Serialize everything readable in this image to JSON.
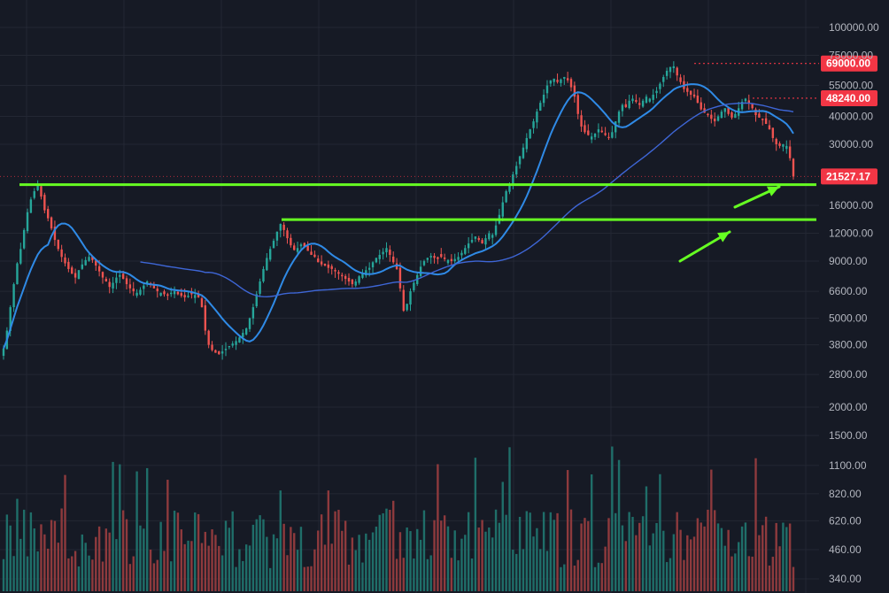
{
  "chart_data": {
    "type": "candlestick",
    "y_scale": "log",
    "grid": true,
    "price_axis": {
      "ticks": [
        "2000.00",
        "2800.00",
        "3800.00",
        "5000.00",
        "6600.00",
        "9000.00",
        "12000.00",
        "16000.00",
        "30000.00",
        "40000.00",
        "55000.00",
        "75000.00",
        "100000.00"
      ],
      "range": [
        1600,
        125000
      ]
    },
    "volume_axis": {
      "ticks": [
        "340.00",
        "460.00",
        "620.00",
        "820.00",
        "1100.00",
        "1500.00"
      ]
    },
    "price_badges": [
      {
        "label": "69000.00",
        "value": 69000,
        "color": "#f23645",
        "style": "dotted"
      },
      {
        "label": "48240.00",
        "value": 48240,
        "color": "#f23645",
        "style": "dotted"
      },
      {
        "label": "21527.17",
        "value": 21527.17,
        "color": "#f23645",
        "style": "current"
      }
    ],
    "support_lines": [
      {
        "value": 19800,
        "color": "#66ff22"
      },
      {
        "value": 13800,
        "color": "#66ff22"
      }
    ],
    "arrows": [
      {
        "direction": "up-right",
        "color": "#66ff22"
      },
      {
        "direction": "up-right",
        "color": "#66ff22"
      }
    ],
    "colors": {
      "up": "#26a69a",
      "down": "#ef5350",
      "ma_short": "#2f8ae6",
      "ma_long": "#3e66d6",
      "background": "#161a25",
      "grid": "#232733"
    },
    "closes": [
      3650,
      4400,
      5600,
      7100,
      8800,
      10200,
      12400,
      14900,
      17000,
      18500,
      19800,
      17500,
      15200,
      14000,
      12600,
      11200,
      10200,
      9400,
      8800,
      8300,
      7900,
      7600,
      8200,
      8700,
      9100,
      9400,
      9100,
      8600,
      8100,
      7600,
      7300,
      6900,
      7200,
      7600,
      7800,
      7500,
      7100,
      6800,
      6600,
      6500,
      6700,
      7000,
      7300,
      7100,
      6800,
      6600,
      6500,
      6400,
      6300,
      6500,
      6600,
      6400,
      6300,
      6200,
      6300,
      6400,
      6350,
      6200,
      5600,
      4400,
      3800,
      3600,
      3500,
      3450,
      3550,
      3650,
      3750,
      3850,
      3950,
      4100,
      4300,
      4500,
      5000,
      5600,
      6400,
      7300,
      8300,
      9300,
      10200,
      11100,
      12200,
      13200,
      12400,
      11400,
      10600,
      10100,
      10300,
      10700,
      10400,
      10000,
      9600,
      9400,
      8900,
      8700,
      8600,
      8400,
      8300,
      8100,
      7900,
      7700,
      7500,
      7300,
      7100,
      7300,
      7700,
      7900,
      8200,
      8400,
      8900,
      9300,
      9600,
      9900,
      10300,
      9600,
      8900,
      8300,
      6800,
      5400,
      5800,
      6600,
      7200,
      7800,
      8500,
      9000,
      9300,
      9500,
      9300,
      9200,
      9400,
      9200,
      9100,
      9000,
      9200,
      9400,
      9800,
      10300,
      10800,
      11200,
      11600,
      11200,
      10800,
      11400,
      12000,
      11800,
      13000,
      14500,
      16500,
      18500,
      20000,
      22000,
      24000,
      26500,
      29000,
      32000,
      35000,
      38000,
      42000,
      46000,
      50000,
      55000,
      58000,
      59000,
      57000,
      58500,
      60000,
      58000,
      54000,
      49000,
      41000,
      36000,
      34000,
      33000,
      32500,
      33500,
      35000,
      34000,
      33000,
      32000,
      34000,
      38000,
      42000,
      45000,
      44000,
      47000,
      48000,
      46500,
      45000,
      47000,
      49000,
      48000,
      50000,
      52000,
      56000,
      60000,
      64000,
      66500,
      67000,
      61000,
      57000,
      53000,
      51500,
      50000,
      49000,
      46000,
      43000,
      41500,
      40500,
      39000,
      38000,
      40000,
      42000,
      43500,
      41000,
      39500,
      41000,
      43500,
      46500,
      48000,
      46000,
      43500,
      40500,
      39500,
      38500,
      37000,
      35000,
      32000,
      30000,
      29500,
      30000,
      29500,
      26000,
      21527
    ]
  }
}
